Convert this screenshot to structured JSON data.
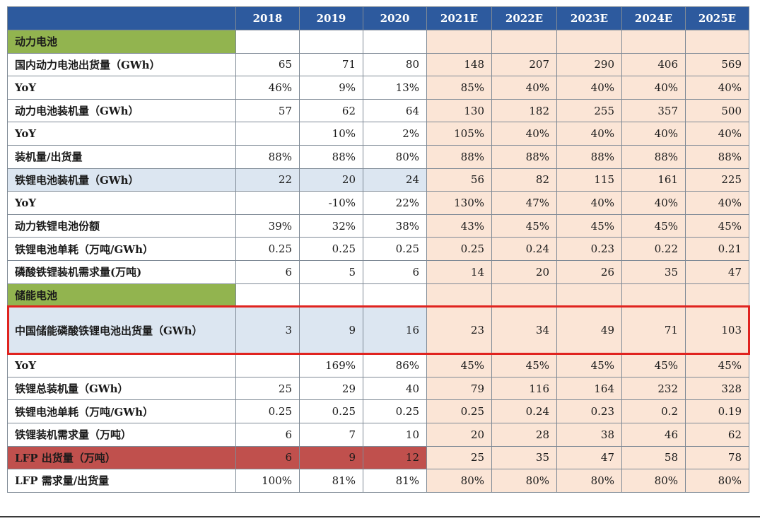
{
  "header": {
    "first": "",
    "years": [
      "2018",
      "2019",
      "2020",
      "2021E",
      "2022E",
      "2023E",
      "2024E",
      "2025E"
    ]
  },
  "rows": [
    {
      "label": "动力电池",
      "type": "section",
      "values": [
        "",
        "",
        "",
        "",
        "",
        "",
        "",
        ""
      ]
    },
    {
      "label": "国内动力电池出货量（GWh）",
      "type": "normal",
      "values": [
        "65",
        "71",
        "80",
        "148",
        "207",
        "290",
        "406",
        "569"
      ]
    },
    {
      "label": "YoY",
      "type": "normal",
      "values": [
        "46%",
        "9%",
        "13%",
        "85%",
        "40%",
        "40%",
        "40%",
        "40%"
      ]
    },
    {
      "label": "动力电池装机量（GWh）",
      "type": "normal",
      "values": [
        "57",
        "62",
        "64",
        "130",
        "182",
        "255",
        "357",
        "500"
      ]
    },
    {
      "label": "YoY",
      "type": "normal",
      "values": [
        "",
        "10%",
        "2%",
        "105%",
        "40%",
        "40%",
        "40%",
        "40%"
      ]
    },
    {
      "label": "装机量/出货量",
      "type": "normal",
      "values": [
        "88%",
        "88%",
        "80%",
        "88%",
        "88%",
        "88%",
        "88%",
        "88%"
      ]
    },
    {
      "label": "铁锂电池装机量（GWh）",
      "type": "blue",
      "values": [
        "22",
        "20",
        "24",
        "56",
        "82",
        "115",
        "161",
        "225"
      ]
    },
    {
      "label": "YoY",
      "type": "normal",
      "values": [
        "",
        "-10%",
        "22%",
        "130%",
        "47%",
        "40%",
        "40%",
        "40%"
      ]
    },
    {
      "label": "动力铁锂电池份额",
      "type": "normal",
      "values": [
        "39%",
        "32%",
        "38%",
        "43%",
        "45%",
        "45%",
        "45%",
        "45%"
      ]
    },
    {
      "label": "铁锂电池单耗（万吨/GWh）",
      "type": "normal",
      "values": [
        "0.25",
        "0.25",
        "0.25",
        "0.25",
        "0.24",
        "0.23",
        "0.22",
        "0.21"
      ]
    },
    {
      "label": "磷酸铁锂装机需求量(万吨)",
      "type": "normal",
      "values": [
        "6",
        "5",
        "6",
        "14",
        "20",
        "26",
        "35",
        "47"
      ]
    },
    {
      "label": "储能电池",
      "type": "section",
      "values": [
        "",
        "",
        "",
        "",
        "",
        "",
        "",
        ""
      ]
    },
    {
      "label": "中国储能磷酸铁锂电池出货量（GWh）",
      "type": "blue-tall",
      "values": [
        "3",
        "9",
        "16",
        "23",
        "34",
        "49",
        "71",
        "103"
      ]
    },
    {
      "label": "YoY",
      "type": "normal",
      "values": [
        "",
        "169%",
        "86%",
        "45%",
        "45%",
        "45%",
        "45%",
        "45%"
      ]
    },
    {
      "label": "铁锂总装机量（GWh）",
      "type": "normal",
      "values": [
        "25",
        "29",
        "40",
        "79",
        "116",
        "164",
        "232",
        "328"
      ]
    },
    {
      "label": "铁锂电池单耗（万吨/GWh）",
      "type": "normal",
      "values": [
        "0.25",
        "0.25",
        "0.25",
        "0.25",
        "0.24",
        "0.23",
        "0.2",
        "0.19"
      ]
    },
    {
      "label": "铁锂装机需求量（万吨）",
      "type": "normal",
      "values": [
        "6",
        "7",
        "10",
        "20",
        "28",
        "38",
        "46",
        "62"
      ]
    },
    {
      "label": "LFP 出货量（万吨）",
      "type": "red",
      "values": [
        "6",
        "9",
        "12",
        "25",
        "35",
        "47",
        "58",
        "78"
      ]
    },
    {
      "label": "LFP 需求量/出货量",
      "type": "normal",
      "values": [
        "100%",
        "81%",
        "81%",
        "80%",
        "80%",
        "80%",
        "80%",
        "80%"
      ]
    }
  ]
}
